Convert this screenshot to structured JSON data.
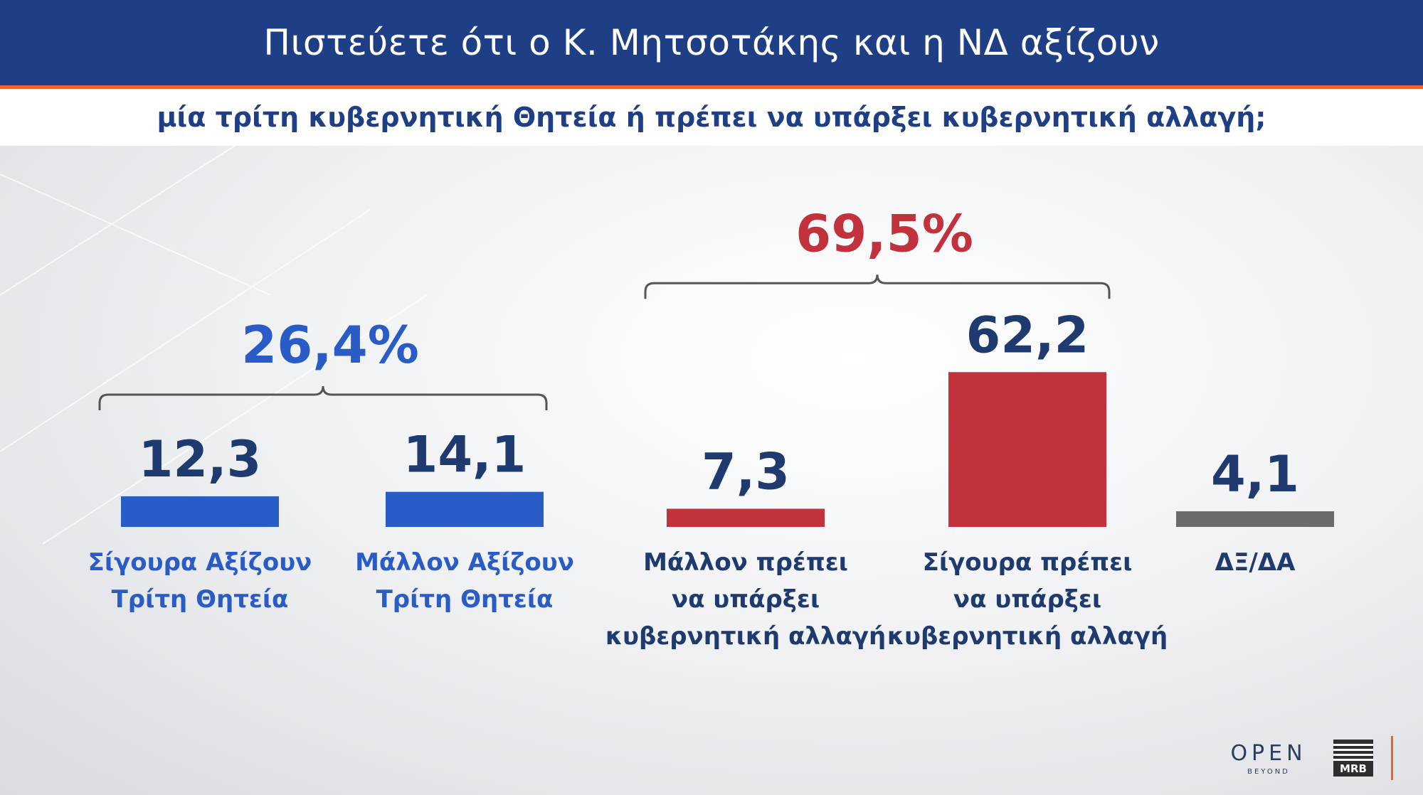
{
  "header": {
    "title": "Πιστεύετε ότι ο Κ. Μητσοτάκης και η ΝΔ αξίζουν",
    "subtitle": "μία τρίτη κυβερνητική Θητεία ή πρέπει να υπάρξει κυβερνητική αλλαγή;"
  },
  "colors": {
    "blue": "#2a5cc7",
    "red": "#c2323c",
    "gray": "#6b6b6b",
    "navy": "#1e3a6e",
    "header": "#1e3f86"
  },
  "chart_data": {
    "type": "bar",
    "categories": [
      [
        "Σίγουρα Αξίζουν",
        "Τρίτη Θητεία"
      ],
      [
        "Μάλλον Αξίζουν",
        "Τρίτη Θητεία"
      ],
      [
        "Μάλλον πρέπει",
        "να υπάρξει",
        "κυβερνητική αλλαγή"
      ],
      [
        "Σίγουρα πρέπει",
        "να υπάρξει",
        "κυβερνητική αλλαγή"
      ],
      [
        "ΔΞ/ΔΑ"
      ]
    ],
    "values": [
      12.3,
      14.1,
      7.3,
      62.2,
      4.1
    ],
    "value_labels": [
      "12,3",
      "14,1",
      "7,3",
      "62,2",
      "4,1"
    ],
    "bar_colors": [
      "blue",
      "blue",
      "red",
      "red",
      "gray"
    ],
    "groups": [
      {
        "label": "26,4%",
        "color": "blue",
        "members": [
          0,
          1
        ]
      },
      {
        "label": "69,5%",
        "color": "red",
        "members": [
          2,
          3
        ]
      }
    ]
  },
  "logos": {
    "open": "OPEN",
    "open_sub": "BEYOND",
    "mrb": "MRB"
  }
}
